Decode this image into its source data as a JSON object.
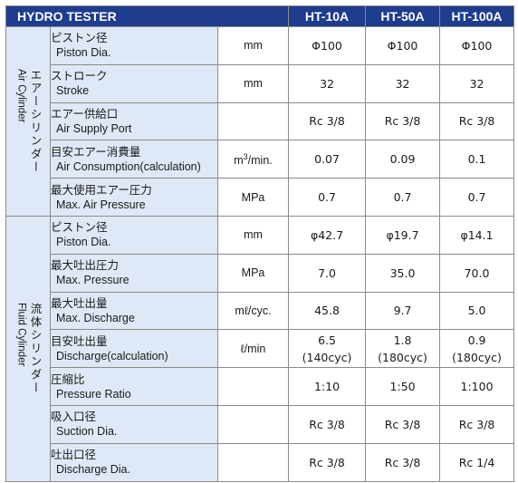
{
  "header": {
    "title": "HYDRO TESTER",
    "models": [
      "HT-10A",
      "HT-50A",
      "HT-100A"
    ]
  },
  "groups": [
    {
      "label_jp": "エアーシリンダー",
      "label_en": "Air Cylinder",
      "rows": [
        {
          "jp": "ピストン径",
          "en": "Piston Dia.",
          "unit": "mm",
          "values": [
            "Φ100",
            "Φ100",
            "Φ100"
          ]
        },
        {
          "jp": "ストローク",
          "en": "Stroke",
          "unit": "mm",
          "values": [
            "32",
            "32",
            "32"
          ]
        },
        {
          "jp": "エアー供給口",
          "en": "Air Supply Port",
          "unit": "",
          "values": [
            "Rc 3/8",
            "Rc 3/8",
            "Rc 3/8"
          ]
        },
        {
          "jp": "目安エアー消費量",
          "en": "Air Consumption(calculation)",
          "unit": "m3/min.",
          "values": [
            "0.07",
            "0.09",
            "0.1"
          ]
        },
        {
          "jp": "最大使用エアー圧力",
          "en": "Max. Air Pressure",
          "unit": "MPa",
          "values": [
            "0.7",
            "0.7",
            "0.7"
          ]
        }
      ]
    },
    {
      "label_jp": "流体シリンダー",
      "label_en": "Fluid Cylinder",
      "rows": [
        {
          "jp": "ピストン径",
          "en": "Piston Dia.",
          "unit": "mm",
          "values": [
            "φ42.7",
            "φ19.7",
            "φ14.1"
          ]
        },
        {
          "jp": "最大吐出圧力",
          "en": "Max. Pressure",
          "unit": "MPa",
          "values": [
            "7.0",
            "35.0",
            "70.0"
          ]
        },
        {
          "jp": "最大吐出量",
          "en": "Max. Discharge",
          "unit": "mℓ/cyc.",
          "values": [
            "45.8",
            "9.7",
            "5.0"
          ]
        },
        {
          "jp": "目安吐出量",
          "en": "Discharge(calculation)",
          "unit": "ℓ/min",
          "values": [
            "6.5",
            "1.8",
            "0.9"
          ],
          "values2": [
            "(140cyc)",
            "(180cyc)",
            "(180cyc)"
          ]
        },
        {
          "jp": "圧縮比",
          "en": "Pressure Ratio",
          "unit": "",
          "values": [
            "1:10",
            "1:50",
            "1:100"
          ]
        },
        {
          "jp": "吸入口径",
          "en": "Suction Dia.",
          "unit": "",
          "values": [
            "Rc 3/8",
            "Rc 3/8",
            "Rc 3/8"
          ]
        },
        {
          "jp": "吐出口径",
          "en": "Discharge Dia.",
          "unit": "",
          "values": [
            "Rc 3/8",
            "Rc 3/8",
            "Rc 1/4"
          ]
        }
      ]
    }
  ],
  "colors": {
    "header_bg": "#1e3d8f",
    "header_text": "#ffffff",
    "label_bg": "#dfe8f6",
    "border": "#8a8a8a"
  }
}
